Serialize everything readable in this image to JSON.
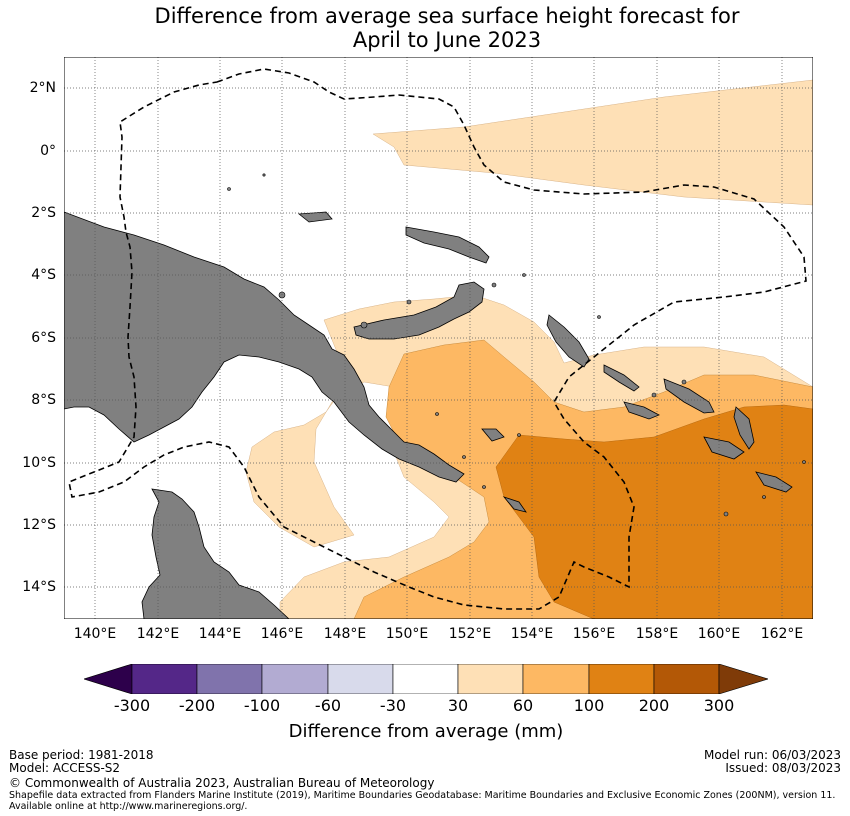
{
  "title": {
    "line1": "Difference from average sea surface height forecast for",
    "line2": "April to June 2023"
  },
  "latitude_labels": [
    "2°N",
    "0°",
    "2°S",
    "4°S",
    "6°S",
    "8°S",
    "10°S",
    "12°S",
    "14°S"
  ],
  "longitude_labels": [
    "140°E",
    "142°E",
    "144°E",
    "146°E",
    "148°E",
    "150°E",
    "152°E",
    "154°E",
    "156°E",
    "158°E",
    "160°E",
    "162°E"
  ],
  "colorbar": {
    "title": "Difference from average (mm)",
    "tick_labels": [
      "-300",
      "-200",
      "-100",
      "-60",
      "-30",
      "30",
      "60",
      "100",
      "200",
      "300"
    ],
    "colors": {
      "below_min": "#2d004b",
      "neg_300_200": "#542788",
      "neg_200_100": "#8073ac",
      "neg_100_60": "#b2abd2",
      "neg_60_30": "#d8daeb",
      "neutral": "#ffffff",
      "pos_30_60": "#fee0b6",
      "pos_60_100": "#fdb863",
      "pos_100_200": "#e08214",
      "pos_200_300": "#b35806",
      "above_max": "#7f3b08"
    }
  },
  "colors": {
    "land": "#808080",
    "eez_line": "#000000",
    "grid": "#555555"
  },
  "footer": {
    "base_period": "Base period: 1981-2018",
    "model": "Model: ACCESS-S2",
    "model_run": "Model run: 06/03/2023",
    "issued": "Issued: 08/03/2023",
    "copyright": "© Commonwealth of Australia 2023, Australian Bureau of Meteorology",
    "source_line1": "Shapefile data extracted from Flanders Marine Institute (2019), Maritime Boundaries Geodatabase: Maritime Boundaries and Exclusive Economic Zones (200NM), version 11.",
    "source_line2": "Available online at http://www.marineregions.org/."
  }
}
